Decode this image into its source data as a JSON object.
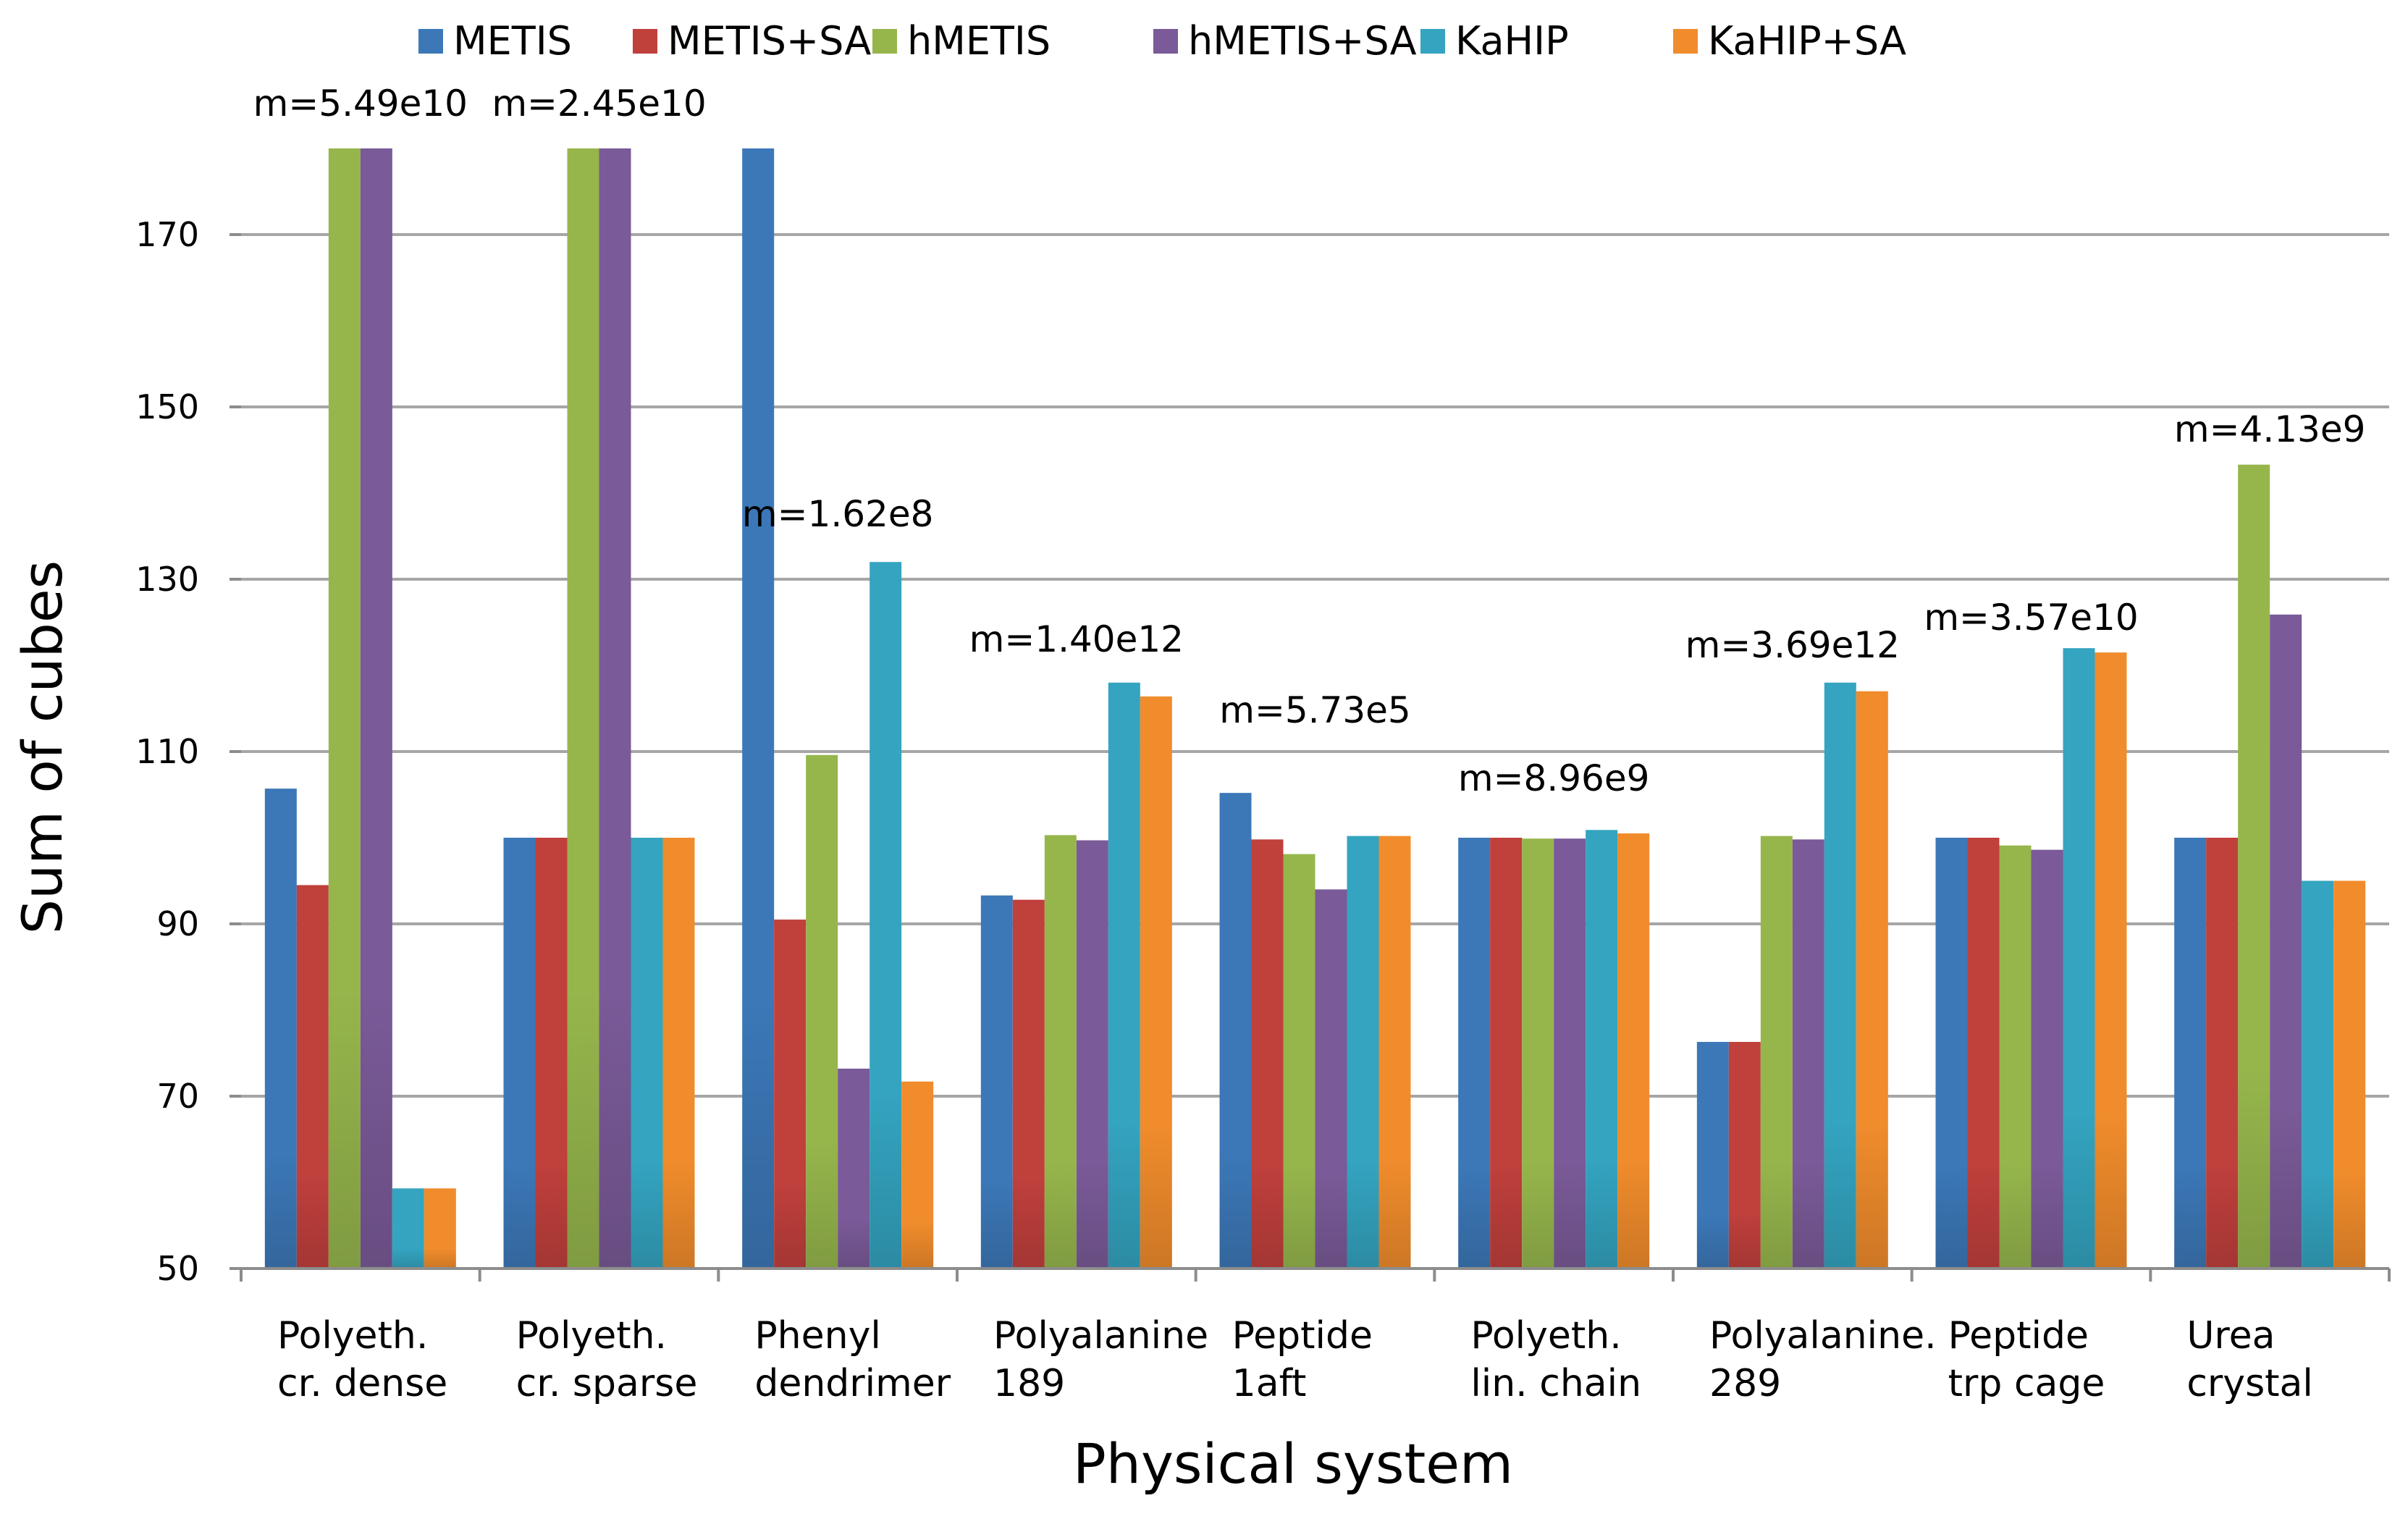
{
  "chart_data": {
    "type": "bar",
    "title": "",
    "xlabel": "Physical system",
    "ylabel": "Sum of cubes",
    "ylim": [
      50,
      180
    ],
    "yticks": [
      50,
      70,
      90,
      110,
      130,
      150,
      170
    ],
    "grid": true,
    "legend_position": "top",
    "categories": [
      [
        "Polyeth.",
        "cr. dense"
      ],
      [
        "Polyeth.",
        "cr. sparse"
      ],
      [
        "Phenyl",
        "dendrimer"
      ],
      [
        "Polyalanine",
        "189"
      ],
      [
        "Peptide",
        "1aft"
      ],
      [
        "Polyeth.",
        "lin. chain"
      ],
      [
        "Polyalanine.",
        "289"
      ],
      [
        "Peptide",
        "trp cage"
      ],
      [
        "Urea",
        "crystal"
      ]
    ],
    "annotations": [
      "m=5.49e10",
      "m=2.45e10",
      "m=1.62e8",
      "m=1.40e12",
      "m=5.73e5",
      "m=8.96e9",
      "m=3.69e12",
      "m=3.57e10",
      "m=4.13e9"
    ],
    "series": [
      {
        "name": "METIS",
        "color": "#3c78b8",
        "values": [
          105.7,
          100,
          180,
          93.3,
          105.2,
          100,
          76.3,
          100,
          100
        ]
      },
      {
        "name": "METIS+SA",
        "color": "#c0403c",
        "values": [
          94.5,
          100,
          90.5,
          92.8,
          99.8,
          100,
          76.3,
          100,
          100
        ]
      },
      {
        "name": "hMETIS",
        "color": "#96b64c",
        "values": [
          180,
          180,
          109.6,
          100.3,
          98.1,
          99.9,
          100.2,
          99.1,
          143.3
        ]
      },
      {
        "name": "hMETIS+SA",
        "color": "#7a5a98",
        "values": [
          180,
          180,
          73.2,
          99.7,
          94,
          99.9,
          99.8,
          98.6,
          125.9
        ]
      },
      {
        "name": "KaHIP",
        "color": "#34a4c0",
        "values": [
          59.3,
          100,
          132,
          118,
          100.2,
          100.9,
          118,
          122,
          95
        ]
      },
      {
        "name": "KaHIP+SA",
        "color": "#f08c2c",
        "values": [
          59.3,
          100,
          71.7,
          116.4,
          100.2,
          100.5,
          117,
          121.5,
          95
        ]
      }
    ]
  }
}
